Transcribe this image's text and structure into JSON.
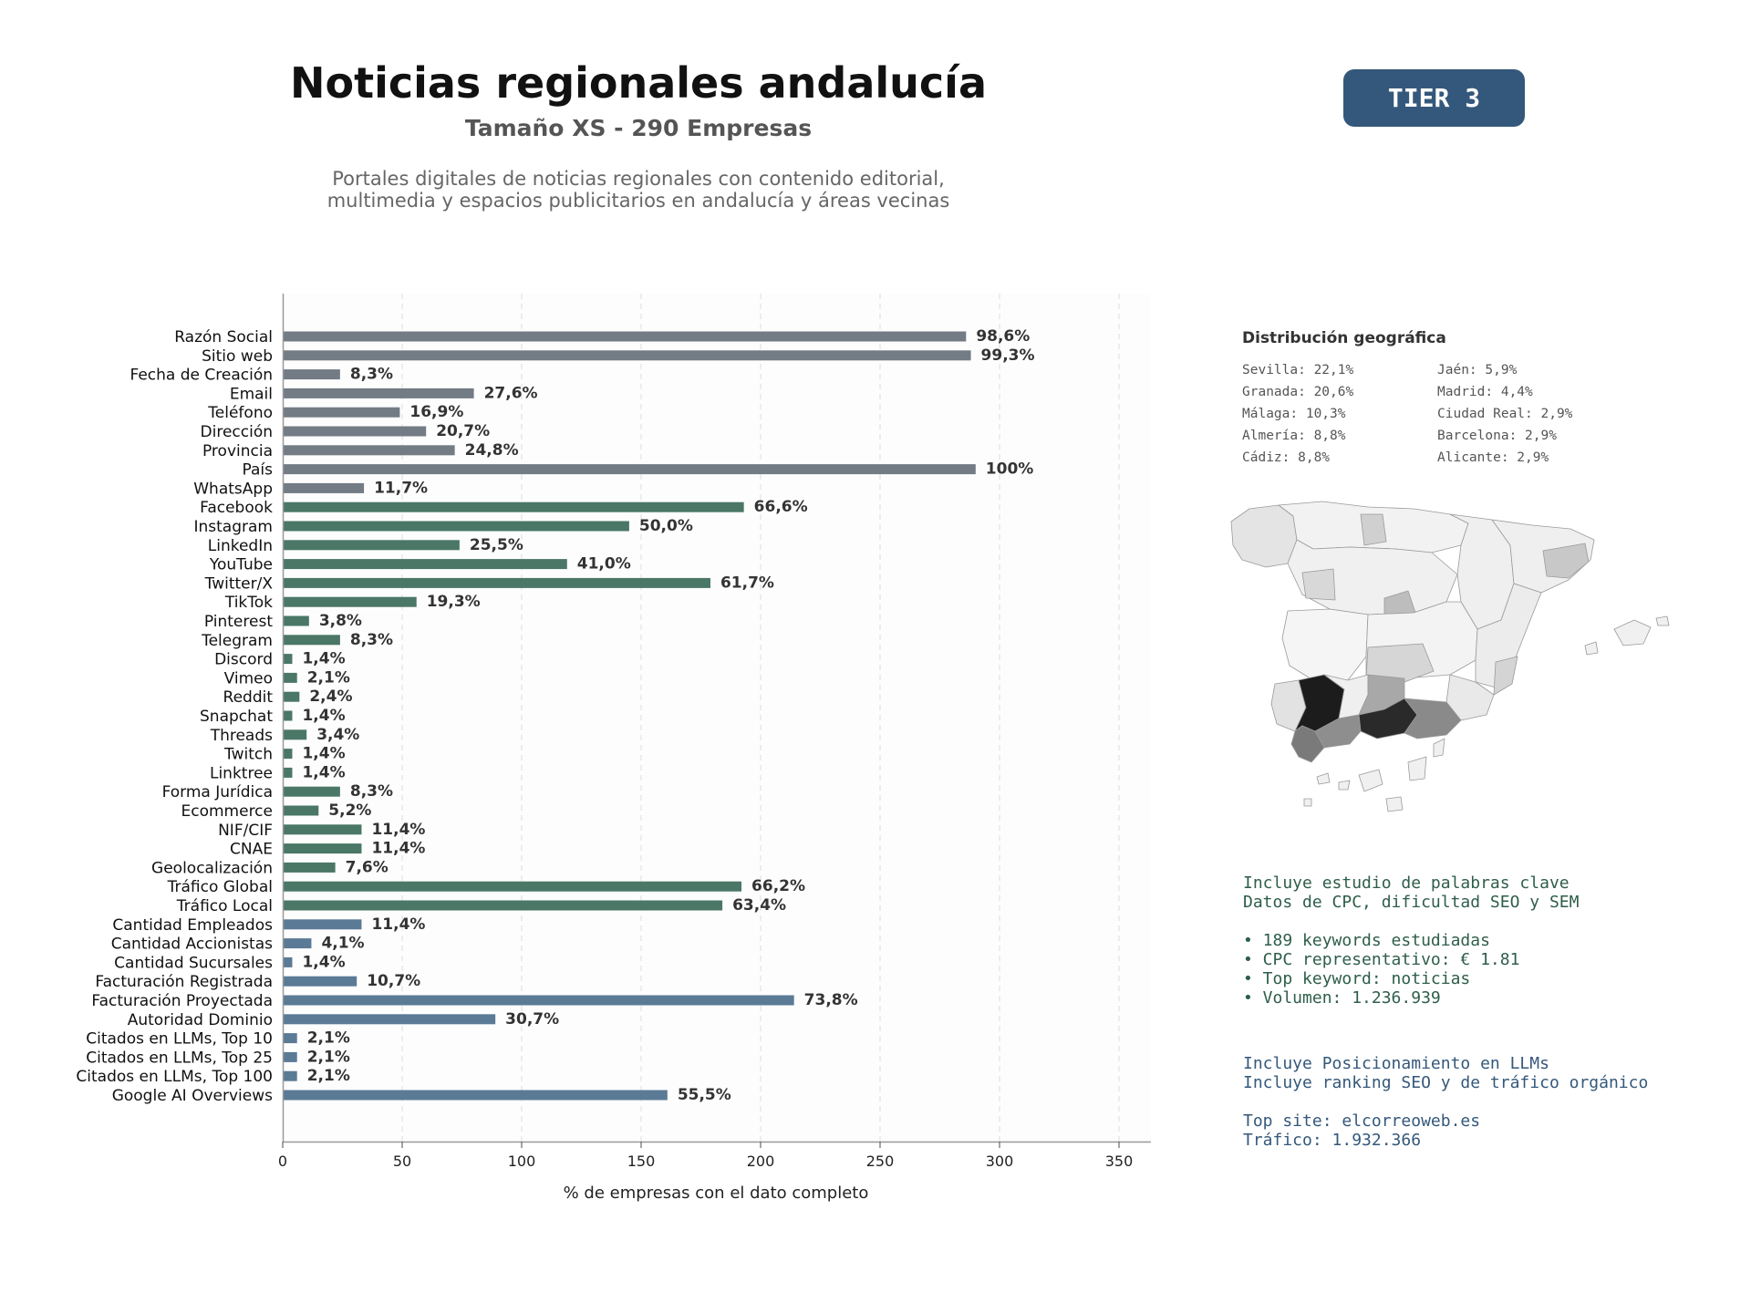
{
  "header": {
    "title": "Noticias regionales andalucía",
    "subtitle": "Tamaño XS - 290 Empresas",
    "description_line1": "Portales digitales de noticias regionales con contenido editorial,",
    "description_line2": "multimedia y espacios publicitarios en andalucía y áreas vecinas",
    "tier_badge": "TIER 3"
  },
  "colors": {
    "gray": "#737b85",
    "green": "#4a7766",
    "blue": "#5b7a96",
    "badge": "#34587b"
  },
  "chart_data": {
    "type": "bar",
    "orientation": "horizontal",
    "xlabel": "% de empresas con el dato completo",
    "xlim": [
      0,
      362
    ],
    "xticks": [
      0,
      50,
      100,
      150,
      200,
      250,
      300,
      350
    ],
    "grid": "vertical dashed",
    "categories": [
      "Razón Social",
      "Sitio web",
      "Fecha de Creación",
      "Email",
      "Teléfono",
      "Dirección",
      "Provincia",
      "País",
      "WhatsApp",
      "Facebook",
      "Instagram",
      "LinkedIn",
      "YouTube",
      "Twitter/X",
      "TikTok",
      "Pinterest",
      "Telegram",
      "Discord",
      "Vimeo",
      "Reddit",
      "Snapchat",
      "Threads",
      "Twitch",
      "Linktree",
      "Forma Jurídica",
      "Ecommerce",
      "NIF/CIF",
      "CNAE",
      "Geolocalización",
      "Tráfico Global",
      "Tráfico Local",
      "Cantidad Empleados",
      "Cantidad Accionistas",
      "Cantidad Sucursales",
      "Facturación Registrada",
      "Facturación Proyectada",
      "Autoridad Dominio",
      "Citados en LLMs, Top 10",
      "Citados en LLMs, Top 25",
      "Citados en LLMs, Top 100",
      "Google AI Overviews"
    ],
    "values": [
      286,
      288,
      24,
      80,
      49,
      60,
      72,
      290,
      34,
      193,
      145,
      74,
      119,
      179,
      56,
      11,
      24,
      4,
      6,
      7,
      4,
      10,
      4,
      4,
      24,
      15,
      33,
      33,
      22,
      192,
      184,
      33,
      12,
      4,
      31,
      214,
      89,
      6,
      6,
      6,
      161
    ],
    "labels": [
      "98,6%",
      "99,3%",
      "8,3%",
      "27,6%",
      "16,9%",
      "20,7%",
      "24,8%",
      "100%",
      "11,7%",
      "66,6%",
      "50,0%",
      "25,5%",
      "41,0%",
      "61,7%",
      "19,3%",
      "3,8%",
      "8,3%",
      "1,4%",
      "2,1%",
      "2,4%",
      "1,4%",
      "3,4%",
      "1,4%",
      "1,4%",
      "8,3%",
      "5,2%",
      "11,4%",
      "11,4%",
      "7,6%",
      "66,2%",
      "63,4%",
      "11,4%",
      "4,1%",
      "1,4%",
      "10,7%",
      "73,8%",
      "30,7%",
      "2,1%",
      "2,1%",
      "2,1%",
      "55,5%"
    ],
    "groups": [
      "gray",
      "gray",
      "gray",
      "gray",
      "gray",
      "gray",
      "gray",
      "gray",
      "gray",
      "green",
      "green",
      "green",
      "green",
      "green",
      "green",
      "green",
      "green",
      "green",
      "green",
      "green",
      "green",
      "green",
      "green",
      "green",
      "green",
      "green",
      "green",
      "green",
      "green",
      "green",
      "green",
      "blue",
      "blue",
      "blue",
      "blue",
      "blue",
      "blue",
      "blue",
      "blue",
      "blue",
      "blue"
    ]
  },
  "geo": {
    "title": "Distribución geográfica",
    "items": [
      "Sevilla: 22,1%",
      "Jaén: 5,9%",
      "Granada: 20,6%",
      "Madrid: 4,4%",
      "Málaga: 10,3%",
      "Ciudad Real: 2,9%",
      "Almería: 8,8%",
      "Barcelona: 2,9%",
      "Cádiz: 8,8%",
      "Alicante: 2,9%"
    ]
  },
  "keywords": {
    "line1": "Incluye estudio de palabras clave",
    "line2": "Datos de CPC, dificultad SEO y SEM",
    "bullet1": "• 189 keywords estudiadas",
    "bullet2": "• CPC representativo: € 1.81",
    "bullet3": "• Top keyword: noticias",
    "bullet4": "• Volumen: 1.236.939"
  },
  "llm": {
    "line1": "Incluye Posicionamiento en LLMs",
    "line2": "Incluye ranking SEO y de tráfico orgánico",
    "top_site": "Top site: elcorreoweb.es",
    "traffic": "Tráfico: 1.932.366"
  }
}
